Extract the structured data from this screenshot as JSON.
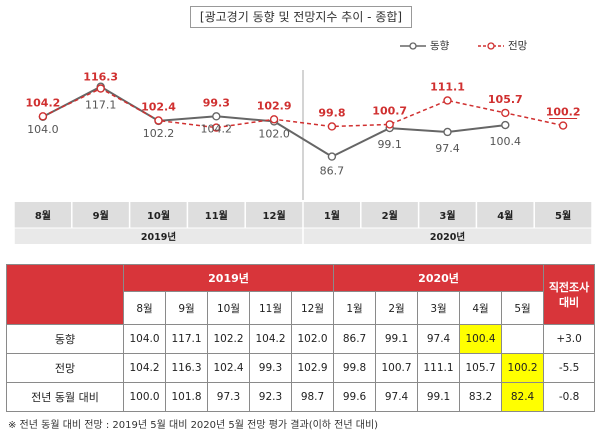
{
  "title": "[광고경기 동향 및 전망지수 추이 - 종합]",
  "legend": {
    "actual": "동향",
    "forecast": "전망"
  },
  "chart_data": {
    "type": "line",
    "title": "[광고경기 동향 및 전망지수 추이 - 종합]",
    "categories": [
      "8월",
      "9월",
      "10월",
      "11월",
      "12월",
      "1월",
      "2월",
      "3월",
      "4월",
      "5월"
    ],
    "year_groups": [
      {
        "label": "2019년",
        "count": 5
      },
      {
        "label": "2020년",
        "count": 5
      }
    ],
    "series": [
      {
        "name": "동향",
        "values": [
          104.0,
          117.1,
          102.2,
          104.2,
          102.0,
          86.7,
          99.1,
          97.4,
          100.4,
          null
        ],
        "color": "#666666",
        "style": "solid"
      },
      {
        "name": "전망",
        "values": [
          104.2,
          116.3,
          102.4,
          99.3,
          102.9,
          99.8,
          100.7,
          111.1,
          105.7,
          100.2
        ],
        "color": "#d03030",
        "style": "dashed"
      }
    ],
    "ylim": [
      80,
      120
    ],
    "grid": false,
    "legend_position": "top-right"
  },
  "table": {
    "years": [
      "2019년",
      "2020년"
    ],
    "side_header": "직전조사 대비",
    "months": [
      "8월",
      "9월",
      "10월",
      "11월",
      "12월",
      "1월",
      "2월",
      "3월",
      "4월",
      "5월"
    ],
    "rows": [
      {
        "label": "동향",
        "values": [
          "104.0",
          "117.1",
          "102.2",
          "104.2",
          "102.0",
          "86.7",
          "99.1",
          "97.4",
          "100.4",
          ""
        ],
        "change": "+3.0",
        "highlight": 8
      },
      {
        "label": "전망",
        "values": [
          "104.2",
          "116.3",
          "102.4",
          "99.3",
          "102.9",
          "99.8",
          "100.7",
          "111.1",
          "105.7",
          "100.2"
        ],
        "change": "-5.5",
        "highlight": 9
      },
      {
        "label": "전년 동월 대비",
        "values": [
          "100.0",
          "101.8",
          "97.3",
          "92.3",
          "98.7",
          "99.6",
          "97.4",
          "99.1",
          "83.2",
          "82.4"
        ],
        "change": "-0.8",
        "highlight": 9
      }
    ]
  },
  "footnote": "※ 전년 동월 대비 전망 : 2019년 5월 대비 2020년 5월 전망 평가 결과(이하 전년 대비)",
  "colors": {
    "accent": "#d8353a",
    "highlight": "#ffff00",
    "actual": "#666666",
    "forecast": "#d03030"
  }
}
